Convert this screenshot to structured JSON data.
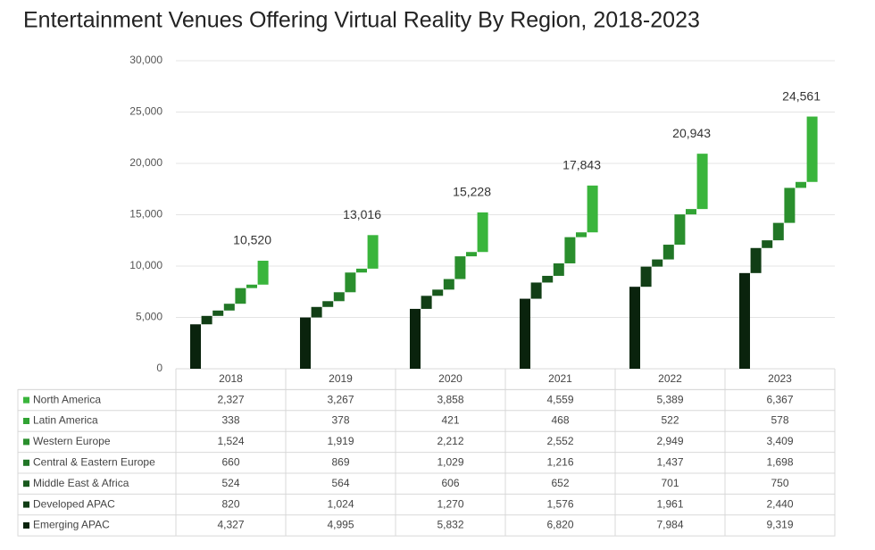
{
  "chart_data": {
    "type": "waterfall-stack",
    "title": "Entertainment Venues Offering Virtual Reality By Region, 2018-2023",
    "categories": [
      "2018",
      "2019",
      "2020",
      "2021",
      "2022",
      "2023"
    ],
    "ylim": [
      0,
      30000
    ],
    "yticks": [
      0,
      {
        "value": 5000,
        "label": "5,000"
      },
      {
        "value": 10000,
        "label": "10,000"
      },
      {
        "value": 15000,
        "label": "15,000"
      },
      {
        "value": 20000,
        "label": "20,000"
      },
      {
        "value": 25000,
        "label": "25,000"
      },
      {
        "value": 30000,
        "label": "30,000"
      }
    ],
    "grid": true,
    "series": [
      {
        "name": "North America",
        "color": "#3ab53c",
        "values": [
          2327,
          3267,
          3858,
          4559,
          5389,
          6367
        ],
        "value_labels": [
          "2,327",
          "3,267",
          "3,858",
          "4,559",
          "5,389",
          "6,367"
        ]
      },
      {
        "name": "Latin America",
        "color": "#31a334",
        "values": [
          338,
          378,
          421,
          468,
          522,
          578
        ],
        "value_labels": [
          "338",
          "378",
          "421",
          "468",
          "522",
          "578"
        ]
      },
      {
        "name": "Western Europe",
        "color": "#2a8f2d",
        "values": [
          1524,
          1919,
          2212,
          2552,
          2949,
          3409
        ],
        "value_labels": [
          "1,524",
          "1,919",
          "2,212",
          "2,552",
          "2,949",
          "3,409"
        ]
      },
      {
        "name": "Central & Eastern Europe",
        "color": "#217626",
        "values": [
          660,
          869,
          1029,
          1216,
          1437,
          1698
        ],
        "value_labels": [
          "660",
          "869",
          "1,029",
          "1,216",
          "1,437",
          "1,698"
        ]
      },
      {
        "name": "Middle East & Africa",
        "color": "#19591d",
        "values": [
          524,
          564,
          606,
          652,
          701,
          750
        ],
        "value_labels": [
          "524",
          "564",
          "606",
          "652",
          "701",
          "750"
        ]
      },
      {
        "name": "Developed APAC",
        "color": "#113d15",
        "values": [
          820,
          1024,
          1270,
          1576,
          1961,
          2440
        ],
        "value_labels": [
          "820",
          "1,024",
          "1,270",
          "1,576",
          "1,961",
          "2,440"
        ]
      },
      {
        "name": "Emerging APAC",
        "color": "#0a230d",
        "values": [
          4327,
          4995,
          5832,
          6820,
          7984,
          9319
        ],
        "value_labels": [
          "4,327",
          "4,995",
          "5,832",
          "6,820",
          "7,984",
          "9,319"
        ]
      }
    ],
    "totals": {
      "values": [
        10520,
        13016,
        15228,
        17843,
        20943,
        24561
      ],
      "value_labels": [
        "10,520",
        "13,016",
        "15,228",
        "17,843",
        "20,943",
        "24,561"
      ]
    }
  }
}
